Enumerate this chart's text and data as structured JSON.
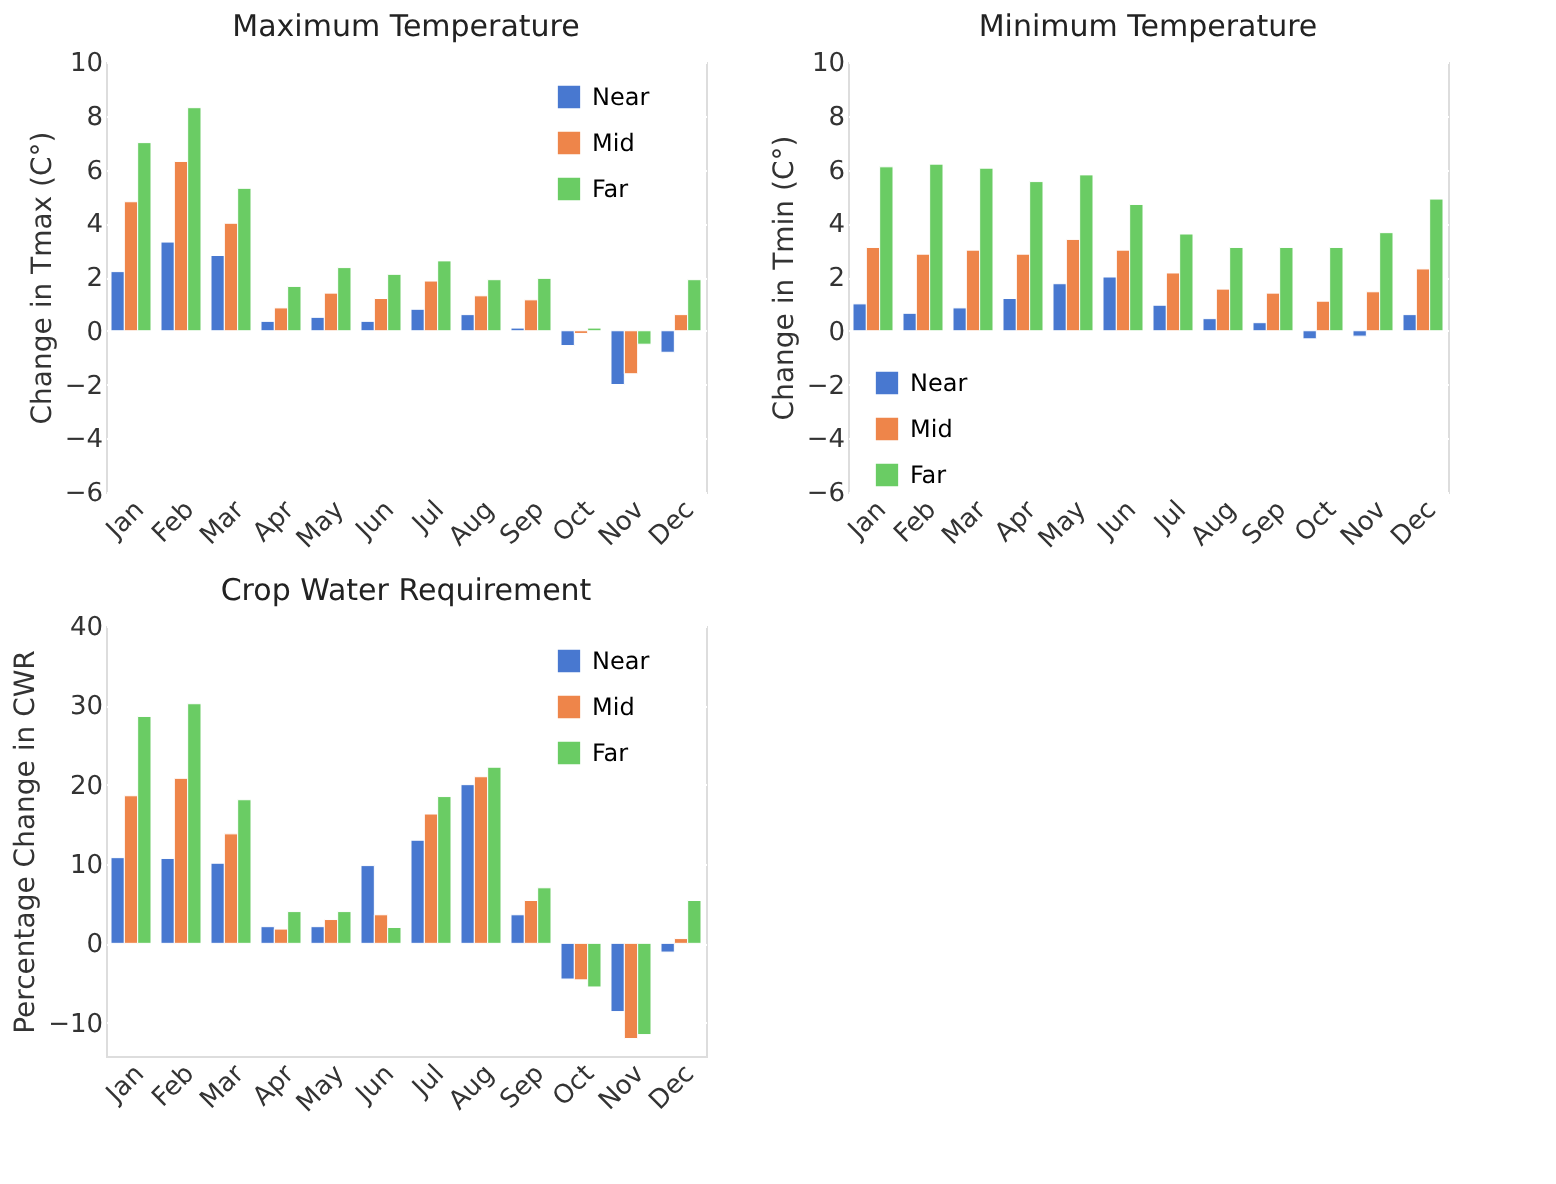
{
  "chart_data": [
    {
      "type": "bar",
      "title": "Maximum Temperature",
      "ylabel": "Change in Tmax (C°)",
      "categories": [
        "Jan",
        "Feb",
        "Mar",
        "Apr",
        "May",
        "Jun",
        "Jul",
        "Aug",
        "Sep",
        "Oct",
        "Nov",
        "Dec"
      ],
      "series": [
        {
          "name": "Near",
          "color": "#4878d0",
          "values": [
            2.2,
            3.3,
            2.8,
            0.35,
            0.5,
            0.35,
            0.8,
            0.6,
            0.1,
            -0.55,
            -2.0,
            -0.8
          ]
        },
        {
          "name": "Mid",
          "color": "#ee854a",
          "values": [
            4.8,
            6.3,
            4.0,
            0.85,
            1.4,
            1.2,
            1.85,
            1.3,
            1.15,
            -0.1,
            -1.6,
            0.6
          ]
        },
        {
          "name": "Far",
          "color": "#6acc64",
          "values": [
            7.0,
            8.3,
            5.3,
            1.65,
            2.35,
            2.1,
            2.6,
            1.9,
            1.95,
            0.1,
            -0.5,
            1.9
          ]
        }
      ],
      "ylim": [
        -6,
        10
      ],
      "yticks": [
        -6,
        -4,
        -2,
        0,
        2,
        4,
        6,
        8,
        10
      ],
      "grid": "y",
      "legend": "top right"
    },
    {
      "type": "bar",
      "title": "Minimum Temperature",
      "ylabel": "Change in Tmin (C°)",
      "categories": [
        "Jan",
        "Feb",
        "Mar",
        "Apr",
        "May",
        "Jun",
        "Jul",
        "Aug",
        "Sep",
        "Oct",
        "Nov",
        "Dec"
      ],
      "series": [
        {
          "name": "Near",
          "color": "#4878d0",
          "values": [
            1.0,
            0.65,
            0.85,
            1.2,
            1.75,
            2.0,
            0.95,
            0.45,
            0.3,
            -0.3,
            -0.2,
            0.6
          ]
        },
        {
          "name": "Mid",
          "color": "#ee854a",
          "values": [
            3.1,
            2.85,
            3.0,
            2.85,
            3.4,
            3.0,
            2.15,
            1.55,
            1.4,
            1.1,
            1.45,
            2.3
          ]
        },
        {
          "name": "Far",
          "color": "#6acc64",
          "values": [
            6.1,
            6.2,
            6.05,
            5.55,
            5.8,
            4.7,
            3.6,
            3.1,
            3.1,
            3.1,
            3.65,
            4.9
          ]
        }
      ],
      "ylim": [
        -6,
        10
      ],
      "yticks": [
        -6,
        -4,
        -2,
        0,
        2,
        4,
        6,
        8,
        10
      ],
      "grid": "y",
      "legend": "bottom left"
    },
    {
      "type": "bar",
      "title": "Crop Water Requirement",
      "ylabel": "Percentage Change in CWR",
      "categories": [
        "Jan",
        "Feb",
        "Mar",
        "Apr",
        "May",
        "Jun",
        "Jul",
        "Aug",
        "Sep",
        "Oct",
        "Nov",
        "Dec"
      ],
      "series": [
        {
          "name": "Near",
          "color": "#4878d0",
          "values": [
            10.8,
            10.7,
            10.1,
            2.1,
            2.1,
            9.8,
            13.0,
            20.0,
            3.6,
            -4.5,
            -8.6,
            -1.1
          ]
        },
        {
          "name": "Mid",
          "color": "#ee854a",
          "values": [
            18.6,
            20.8,
            13.8,
            1.8,
            3.0,
            3.6,
            16.3,
            21.0,
            5.4,
            -4.6,
            -12.0,
            0.6
          ]
        },
        {
          "name": "Far",
          "color": "#6acc64",
          "values": [
            28.6,
            30.2,
            18.1,
            4.0,
            4.0,
            2.0,
            18.5,
            22.2,
            7.0,
            -5.5,
            -11.5,
            5.4
          ]
        }
      ],
      "ylim": [
        -14.2,
        40
      ],
      "yticks": [
        -10,
        0,
        10,
        20,
        30,
        40
      ],
      "grid": "y",
      "legend": "top right"
    }
  ]
}
